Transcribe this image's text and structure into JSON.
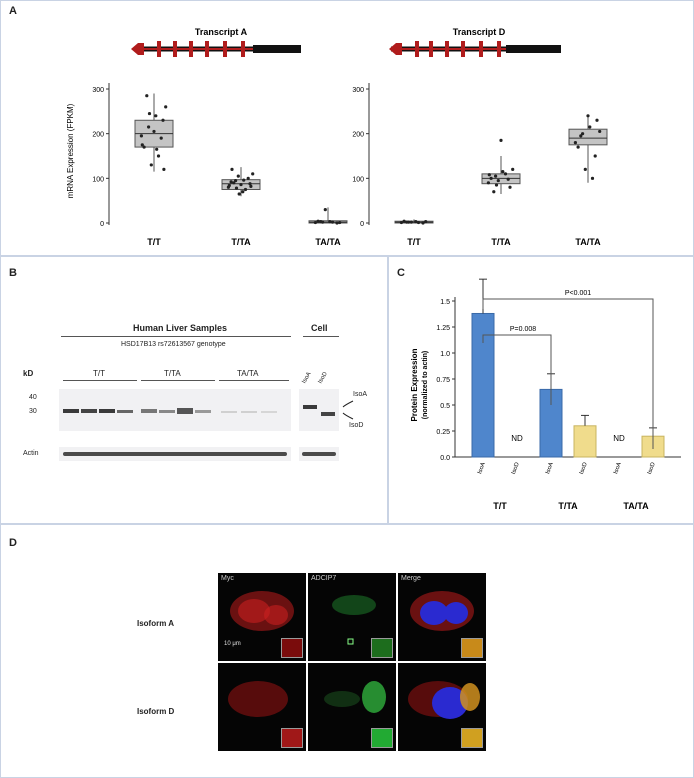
{
  "panels": {
    "a": "A",
    "b": "B",
    "c": "C",
    "d": "D"
  },
  "panel_a": {
    "ylabel": "mRNA Expression (FPKM)",
    "left": {
      "title": "Transcript A",
      "yticks": [
        "300",
        "200",
        "100",
        "0"
      ],
      "categories": [
        "T/T",
        "T/TA",
        "TA/TA"
      ]
    },
    "right": {
      "title": "Transcript D",
      "yticks": [
        "300",
        "200",
        "100",
        "0"
      ],
      "categories": [
        "T/T",
        "T/TA",
        "TA/TA"
      ]
    }
  },
  "panel_b": {
    "heading": "Human Liver Samples",
    "subheading": "HSD17B13 rs72613567 genotype",
    "cell_label": "Cell",
    "kd_label": "kD",
    "mw_markers": [
      "40",
      "30"
    ],
    "genotypes": [
      "T/T",
      "T/TA",
      "TA/TA"
    ],
    "cell_lanes": [
      "IsoA",
      "IsoD"
    ],
    "band_labels": [
      "IsoA",
      "IsoD"
    ],
    "loading_label": "Actin"
  },
  "panel_b_extra": {
    "genotype_line": "HSD17B13 rs72613567 genotype"
  },
  "panel_c": {
    "ylabel": "Protein Expression",
    "ylabel2": "(normalized to actin)",
    "yticks": [
      "1.5",
      "1.0",
      "0.5",
      "0.0"
    ],
    "yticks_mid": [
      "1.25",
      "0.75",
      "0.25"
    ],
    "pvalue_wide": "P<0.001",
    "pvalue_narrow": "P=0.008",
    "nd_label": "ND",
    "bar_labels": [
      "IsoA",
      "IsoD",
      "IsoA",
      "IsoD",
      "IsoA",
      "IsoD"
    ],
    "groups": [
      "T/T",
      "T/TA",
      "TA/TA"
    ]
  },
  "panel_d": {
    "columns": [
      "Myc",
      "ADCIP7",
      "Merge"
    ],
    "rows": [
      "Isoform A",
      "Isoform D"
    ],
    "scale": "10 μm"
  },
  "colors": {
    "iso_a_bar": "#4f86cc",
    "iso_d_bar": "#f0dc8c",
    "exon": "#b01c1c",
    "panel_border": "#c9d3e4"
  },
  "chart_data": [
    {
      "type": "box",
      "title": "Transcript A",
      "ylabel": "mRNA Expression (FPKM)",
      "categories": [
        "T/T",
        "T/TA",
        "TA/TA"
      ],
      "ylim": [
        0,
        300
      ],
      "boxes": [
        {
          "min": 115,
          "q1": 170,
          "median": 200,
          "q3": 230,
          "max": 290
        },
        {
          "min": 60,
          "q1": 75,
          "median": 88,
          "q3": 97,
          "max": 125
        },
        {
          "min": 0,
          "q1": 0,
          "median": 2,
          "q3": 5,
          "max": 35
        }
      ],
      "points": [
        [
          195,
          215,
          240,
          230,
          170,
          130,
          150,
          260,
          285,
          205,
          190,
          175,
          245,
          165,
          120
        ],
        [
          80,
          95,
          70,
          88,
          92,
          105,
          75,
          110,
          90,
          86,
          100,
          84,
          78,
          96,
          82,
          120,
          65
        ],
        [
          1,
          2,
          3,
          0,
          4,
          30,
          2,
          1,
          3
        ]
      ]
    },
    {
      "type": "box",
      "title": "Transcript D",
      "categories": [
        "T/T",
        "T/TA",
        "TA/TA"
      ],
      "ylim": [
        0,
        300
      ],
      "boxes": [
        {
          "min": 0,
          "q1": 0,
          "median": 2,
          "q3": 4,
          "max": 8
        },
        {
          "min": 65,
          "q1": 88,
          "median": 100,
          "q3": 110,
          "max": 150
        },
        {
          "min": 90,
          "q1": 175,
          "median": 190,
          "q3": 210,
          "max": 240
        }
      ],
      "points": [
        [
          1,
          2,
          3,
          0,
          4,
          2,
          1,
          3,
          2
        ],
        [
          90,
          105,
          115,
          80,
          100,
          95,
          110,
          120,
          70,
          185,
          98,
          108,
          85
        ],
        [
          180,
          200,
          215,
          230,
          170,
          120,
          100,
          205,
          195,
          240,
          150
        ]
      ]
    },
    {
      "type": "bar",
      "ylabel": "Protein Expression (normalized to actin)",
      "categories": [
        "IsoA",
        "IsoD",
        "IsoA",
        "IsoD",
        "IsoA",
        "IsoD"
      ],
      "groups": [
        "T/T",
        "T/TA",
        "TA/TA"
      ],
      "values": [
        1.38,
        0,
        0.65,
        0.3,
        0,
        0.2
      ],
      "errors": [
        0.33,
        0,
        0.15,
        0.1,
        0,
        0.08
      ],
      "nd": [
        false,
        true,
        false,
        false,
        true,
        false
      ],
      "ylim": [
        0,
        1.5
      ]
    }
  ]
}
